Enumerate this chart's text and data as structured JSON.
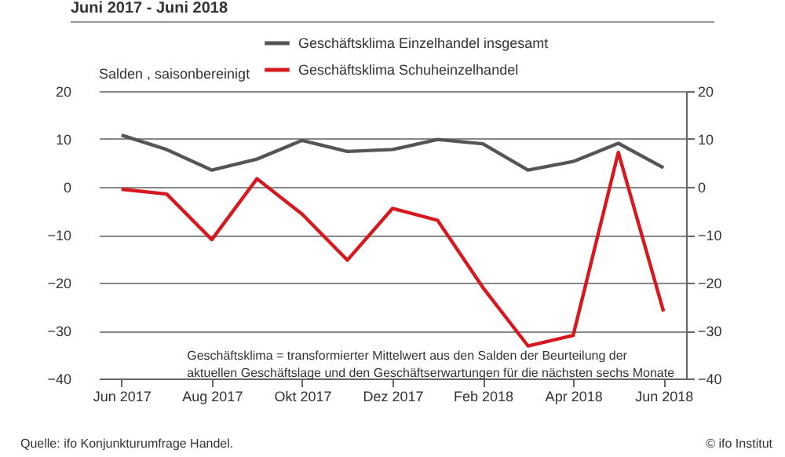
{
  "chart_data": {
    "type": "line",
    "title": "Juni 2017 -  Juni 2018",
    "ylabel": "Salden , saisonbereinigt",
    "categories": [
      "Jun 2017",
      null,
      "Aug 2017",
      null,
      "Okt 2017",
      null,
      "Dez 2017",
      null,
      "Feb 2018",
      null,
      "Apr 2018",
      null,
      "Jun 2018"
    ],
    "series": [
      {
        "name": "Geschäftsklima Einzelhandel insgesamt",
        "color": "#555555",
        "values": [
          10.8,
          7.8,
          3.5,
          5.8,
          9.7,
          7.4,
          7.8,
          9.9,
          9.0,
          3.5,
          5.3,
          9.1,
          4.0
        ]
      },
      {
        "name": "Geschäftsklima Schuheinzelhandel",
        "color": "#d7191f",
        "values": [
          -0.5,
          -1.5,
          -11.0,
          1.7,
          -5.7,
          -15.3,
          -4.5,
          -7.0,
          -21.0,
          -33.2,
          -31.0,
          7.2,
          -26.0
        ]
      }
    ],
    "ylim": [
      -40,
      20
    ],
    "yticks": [
      -40,
      -30,
      -20,
      -10,
      0,
      10,
      20
    ],
    "y2lim": [
      -40,
      20
    ],
    "y2ticks": [
      -40,
      -30,
      -20,
      -10,
      0,
      10,
      20
    ],
    "grid": "y",
    "legend": "top right",
    "marker": "none",
    "line_style": "solid",
    "annotations": [
      "Geschäftsklima = transformierter Mittelwert aus den Salden der Beurteilung der\naktuellen Geschäftslage und den Geschäftserwartungen für die nächsten sechs Monate",
      "Quelle: ifo Konjunkturumfrage Handel.",
      "© ifo Institut"
    ]
  }
}
